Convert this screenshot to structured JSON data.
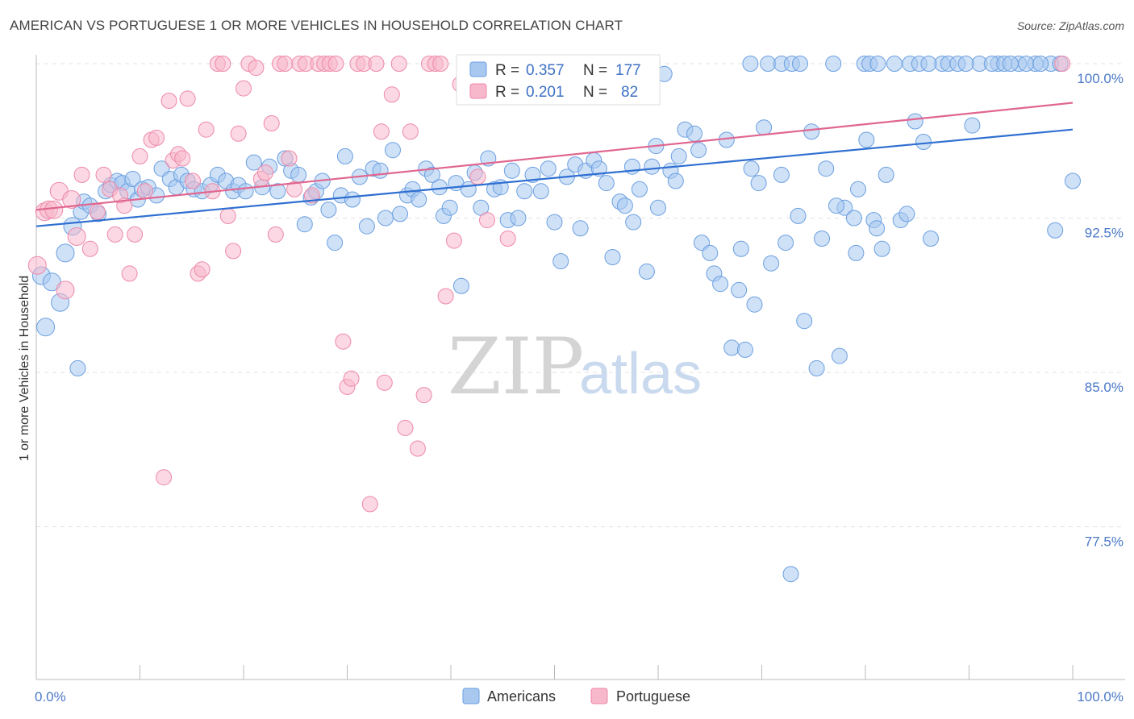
{
  "title": "AMERICAN VS PORTUGUESE 1 OR MORE VEHICLES IN HOUSEHOLD CORRELATION CHART",
  "source": "Source: ZipAtlas.com",
  "watermark": {
    "zip": "ZIP",
    "atlas": "atlas"
  },
  "colors": {
    "americans_fill": "#a8c8f0",
    "americans_stroke": "#6b9fe0",
    "americans_line": "#2f6fd1",
    "portuguese_fill": "#f7b8cc",
    "portuguese_stroke": "#ee89a9",
    "portuguese_line": "#e0668f",
    "tick_text": "#4a78c7",
    "grid": "#e0e0e0"
  },
  "legend": {
    "americans": {
      "r_label": "R =",
      "r_value": "0.357",
      "n_label": "N =",
      "n_value": "177"
    },
    "portuguese": {
      "r_label": "R =",
      "r_value": "0.201",
      "n_label": "N =",
      "n_value": "82"
    }
  },
  "bottom_legend": {
    "americans": "Americans",
    "portuguese": "Portuguese"
  },
  "chart_data": {
    "type": "scatter",
    "title": "AMERICAN VS PORTUGUESE 1 OR MORE VEHICLES IN HOUSEHOLD CORRELATION CHART",
    "xlabel": "",
    "ylabel": "1 or more Vehicles in Household",
    "xlim": [
      0,
      100
    ],
    "ylim": [
      70.0,
      101.0
    ],
    "x_tick_labels": [
      "0.0%",
      "100.0%"
    ],
    "y_ticks": [
      77.5,
      85.0,
      92.5,
      100.0
    ],
    "y_tick_labels": [
      "77.5%",
      "85.0%",
      "92.5%",
      "100.0%"
    ],
    "grid": true,
    "legend_position": "top-center",
    "series": [
      {
        "name": "Americans",
        "R": 0.357,
        "N": 177,
        "trend": {
          "x": [
            0,
            100
          ],
          "y": [
            92.1,
            96.8
          ]
        },
        "points": [
          [
            0.5,
            89.7
          ],
          [
            0.9,
            87.2
          ],
          [
            1.5,
            89.4
          ],
          [
            2.3,
            88.4
          ],
          [
            2.8,
            90.8
          ],
          [
            3.5,
            92.1
          ],
          [
            4.0,
            85.2
          ],
          [
            4.3,
            92.8
          ],
          [
            4.6,
            93.3
          ],
          [
            5.2,
            93.1
          ],
          [
            6.0,
            92.7
          ],
          [
            6.7,
            93.8
          ],
          [
            7.2,
            94.1
          ],
          [
            7.8,
            94.3
          ],
          [
            8.3,
            94.2
          ],
          [
            8.8,
            93.8
          ],
          [
            9.3,
            94.4
          ],
          [
            9.8,
            93.4
          ],
          [
            10.2,
            93.9
          ],
          [
            10.8,
            94.0
          ],
          [
            11.6,
            93.6
          ],
          [
            12.1,
            94.9
          ],
          [
            12.9,
            94.4
          ],
          [
            13.5,
            94.0
          ],
          [
            14.0,
            94.6
          ],
          [
            14.6,
            94.3
          ],
          [
            15.2,
            93.9
          ],
          [
            16.0,
            93.8
          ],
          [
            16.8,
            94.1
          ],
          [
            17.5,
            94.6
          ],
          [
            18.3,
            94.3
          ],
          [
            19.0,
            93.8
          ],
          [
            19.5,
            94.1
          ],
          [
            20.2,
            93.8
          ],
          [
            21.0,
            95.2
          ],
          [
            21.8,
            94.0
          ],
          [
            22.5,
            95.0
          ],
          [
            23.3,
            93.8
          ],
          [
            24.0,
            95.4
          ],
          [
            24.6,
            94.8
          ],
          [
            25.3,
            94.6
          ],
          [
            25.9,
            92.2
          ],
          [
            26.5,
            93.5
          ],
          [
            27.0,
            93.8
          ],
          [
            27.6,
            94.3
          ],
          [
            28.2,
            92.9
          ],
          [
            28.8,
            91.3
          ],
          [
            29.4,
            93.6
          ],
          [
            29.8,
            95.5
          ],
          [
            30.5,
            93.4
          ],
          [
            31.2,
            94.5
          ],
          [
            31.9,
            92.1
          ],
          [
            32.5,
            94.9
          ],
          [
            33.2,
            94.8
          ],
          [
            33.7,
            92.5
          ],
          [
            34.4,
            95.8
          ],
          [
            35.1,
            92.7
          ],
          [
            35.8,
            93.6
          ],
          [
            36.3,
            93.9
          ],
          [
            36.9,
            93.4
          ],
          [
            37.6,
            94.9
          ],
          [
            38.2,
            94.6
          ],
          [
            38.9,
            94.0
          ],
          [
            39.3,
            92.6
          ],
          [
            39.9,
            93.0
          ],
          [
            40.5,
            94.2
          ],
          [
            41.0,
            89.2
          ],
          [
            41.7,
            93.9
          ],
          [
            42.3,
            94.7
          ],
          [
            42.9,
            93.0
          ],
          [
            43.6,
            95.4
          ],
          [
            44.2,
            93.9
          ],
          [
            44.8,
            94.0
          ],
          [
            45.5,
            92.4
          ],
          [
            45.9,
            94.8
          ],
          [
            46.5,
            92.5
          ],
          [
            47.1,
            93.8
          ],
          [
            47.9,
            94.6
          ],
          [
            48.7,
            93.8
          ],
          [
            49.4,
            94.9
          ],
          [
            50.0,
            92.3
          ],
          [
            50.6,
            90.4
          ],
          [
            51.2,
            94.5
          ],
          [
            52.0,
            95.1
          ],
          [
            52.5,
            92.0
          ],
          [
            53.0,
            94.8
          ],
          [
            53.8,
            95.3
          ],
          [
            54.3,
            94.9
          ],
          [
            55.0,
            94.2
          ],
          [
            55.6,
            90.6
          ],
          [
            56.3,
            93.3
          ],
          [
            56.8,
            93.1
          ],
          [
            57.6,
            92.3
          ],
          [
            58.2,
            93.9
          ],
          [
            58.9,
            89.9
          ],
          [
            59.4,
            95.0
          ],
          [
            60.0,
            93.0
          ],
          [
            60.6,
            99.5
          ],
          [
            61.2,
            94.8
          ],
          [
            61.7,
            94.3
          ],
          [
            62.6,
            96.8
          ],
          [
            63.5,
            96.6
          ],
          [
            64.2,
            91.3
          ],
          [
            65.0,
            90.8
          ],
          [
            65.4,
            89.8
          ],
          [
            66.0,
            89.3
          ],
          [
            67.1,
            86.2
          ],
          [
            67.8,
            89.0
          ],
          [
            68.4,
            86.1
          ],
          [
            69.0,
            94.9
          ],
          [
            69.7,
            94.2
          ],
          [
            70.2,
            96.9
          ],
          [
            70.9,
            90.3
          ],
          [
            71.9,
            94.6
          ],
          [
            72.3,
            91.3
          ],
          [
            72.8,
            75.2
          ],
          [
            73.5,
            92.6
          ],
          [
            74.1,
            87.5
          ],
          [
            74.8,
            96.7
          ],
          [
            75.3,
            85.2
          ],
          [
            76.2,
            94.9
          ],
          [
            77.5,
            85.8
          ],
          [
            78.0,
            93.0
          ],
          [
            78.9,
            92.5
          ],
          [
            79.3,
            93.9
          ],
          [
            80.1,
            96.3
          ],
          [
            80.8,
            92.4
          ],
          [
            81.6,
            91.0
          ],
          [
            82.0,
            94.6
          ],
          [
            83.4,
            92.4
          ],
          [
            84.0,
            92.7
          ],
          [
            84.8,
            97.2
          ],
          [
            85.6,
            96.2
          ],
          [
            86.3,
            91.5
          ],
          [
            87.4,
            100.0
          ],
          [
            90.3,
            97.0
          ],
          [
            91.0,
            100.0
          ],
          [
            92.8,
            100.0
          ],
          [
            94.8,
            100.0
          ],
          [
            96.4,
            100.0
          ],
          [
            97.9,
            100.0
          ],
          [
            98.3,
            91.9
          ],
          [
            100.0,
            94.3
          ],
          [
            68.9,
            100.0
          ],
          [
            70.6,
            100.0
          ],
          [
            71.9,
            100.0
          ],
          [
            72.9,
            100.0
          ],
          [
            73.7,
            100.0
          ],
          [
            76.9,
            100.0
          ],
          [
            79.9,
            100.0
          ],
          [
            80.4,
            100.0
          ],
          [
            81.2,
            100.0
          ],
          [
            82.8,
            100.0
          ],
          [
            84.3,
            100.0
          ],
          [
            85.2,
            100.0
          ],
          [
            86.1,
            100.0
          ],
          [
            88.0,
            100.0
          ],
          [
            88.9,
            100.0
          ],
          [
            89.7,
            100.0
          ],
          [
            92.2,
            100.0
          ],
          [
            93.4,
            100.0
          ],
          [
            94.0,
            100.0
          ],
          [
            95.5,
            100.0
          ],
          [
            96.9,
            100.0
          ],
          [
            98.8,
            100.0
          ],
          [
            54.5,
            98.5
          ],
          [
            57.5,
            95.0
          ],
          [
            59.8,
            96.0
          ],
          [
            62.0,
            95.5
          ],
          [
            63.9,
            95.8
          ],
          [
            66.6,
            96.3
          ],
          [
            68.0,
            91.0
          ],
          [
            69.3,
            88.3
          ],
          [
            75.8,
            91.5
          ],
          [
            77.2,
            93.1
          ],
          [
            79.1,
            90.8
          ],
          [
            81.1,
            92.0
          ]
        ]
      },
      {
        "name": "Portuguese",
        "R": 0.201,
        "N": 82,
        "trend": {
          "x": [
            0,
            100
          ],
          "y": [
            92.9,
            98.1
          ]
        },
        "points": [
          [
            0.1,
            90.2
          ],
          [
            0.8,
            92.8
          ],
          [
            1.2,
            92.9
          ],
          [
            1.7,
            92.9
          ],
          [
            2.2,
            93.8
          ],
          [
            2.8,
            89.0
          ],
          [
            3.4,
            93.4
          ],
          [
            3.9,
            91.6
          ],
          [
            4.4,
            94.6
          ],
          [
            5.2,
            91.0
          ],
          [
            5.9,
            92.8
          ],
          [
            6.5,
            94.6
          ],
          [
            7.1,
            93.9
          ],
          [
            7.6,
            91.7
          ],
          [
            8.1,
            93.6
          ],
          [
            8.5,
            93.1
          ],
          [
            9.0,
            89.8
          ],
          [
            9.5,
            91.7
          ],
          [
            10.0,
            95.5
          ],
          [
            10.5,
            93.8
          ],
          [
            11.1,
            96.3
          ],
          [
            11.6,
            96.4
          ],
          [
            12.3,
            79.9
          ],
          [
            12.8,
            98.2
          ],
          [
            13.2,
            95.3
          ],
          [
            13.7,
            95.6
          ],
          [
            14.1,
            95.4
          ],
          [
            14.6,
            98.3
          ],
          [
            15.1,
            94.3
          ],
          [
            15.6,
            89.8
          ],
          [
            16.0,
            90.0
          ],
          [
            16.4,
            96.8
          ],
          [
            17.0,
            93.8
          ],
          [
            17.5,
            100.0
          ],
          [
            18.0,
            100.0
          ],
          [
            18.5,
            92.6
          ],
          [
            19.0,
            90.9
          ],
          [
            19.5,
            96.6
          ],
          [
            20.0,
            98.8
          ],
          [
            20.5,
            100.0
          ],
          [
            21.2,
            99.8
          ],
          [
            21.7,
            94.4
          ],
          [
            22.1,
            94.7
          ],
          [
            22.7,
            97.1
          ],
          [
            23.1,
            91.7
          ],
          [
            23.5,
            100.0
          ],
          [
            24.0,
            100.0
          ],
          [
            24.4,
            95.4
          ],
          [
            24.9,
            93.9
          ],
          [
            25.4,
            100.0
          ],
          [
            26.0,
            100.0
          ],
          [
            26.6,
            93.6
          ],
          [
            27.2,
            100.0
          ],
          [
            27.8,
            100.0
          ],
          [
            28.3,
            100.0
          ],
          [
            28.9,
            100.0
          ],
          [
            29.6,
            86.5
          ],
          [
            30.0,
            84.3
          ],
          [
            30.4,
            84.7
          ],
          [
            31.0,
            100.0
          ],
          [
            31.6,
            100.0
          ],
          [
            32.2,
            78.6
          ],
          [
            32.8,
            100.0
          ],
          [
            33.3,
            96.7
          ],
          [
            33.6,
            84.5
          ],
          [
            34.3,
            98.5
          ],
          [
            35.0,
            100.0
          ],
          [
            35.6,
            82.3
          ],
          [
            36.1,
            96.7
          ],
          [
            36.8,
            81.3
          ],
          [
            37.4,
            83.9
          ],
          [
            37.9,
            100.0
          ],
          [
            38.5,
            100.0
          ],
          [
            39.0,
            100.0
          ],
          [
            39.5,
            88.7
          ],
          [
            40.3,
            91.4
          ],
          [
            40.9,
            99.0
          ],
          [
            42.6,
            94.5
          ],
          [
            43.5,
            92.4
          ],
          [
            45.5,
            91.5
          ],
          [
            48.6,
            100.0
          ],
          [
            99.0,
            100.0
          ]
        ]
      }
    ]
  }
}
